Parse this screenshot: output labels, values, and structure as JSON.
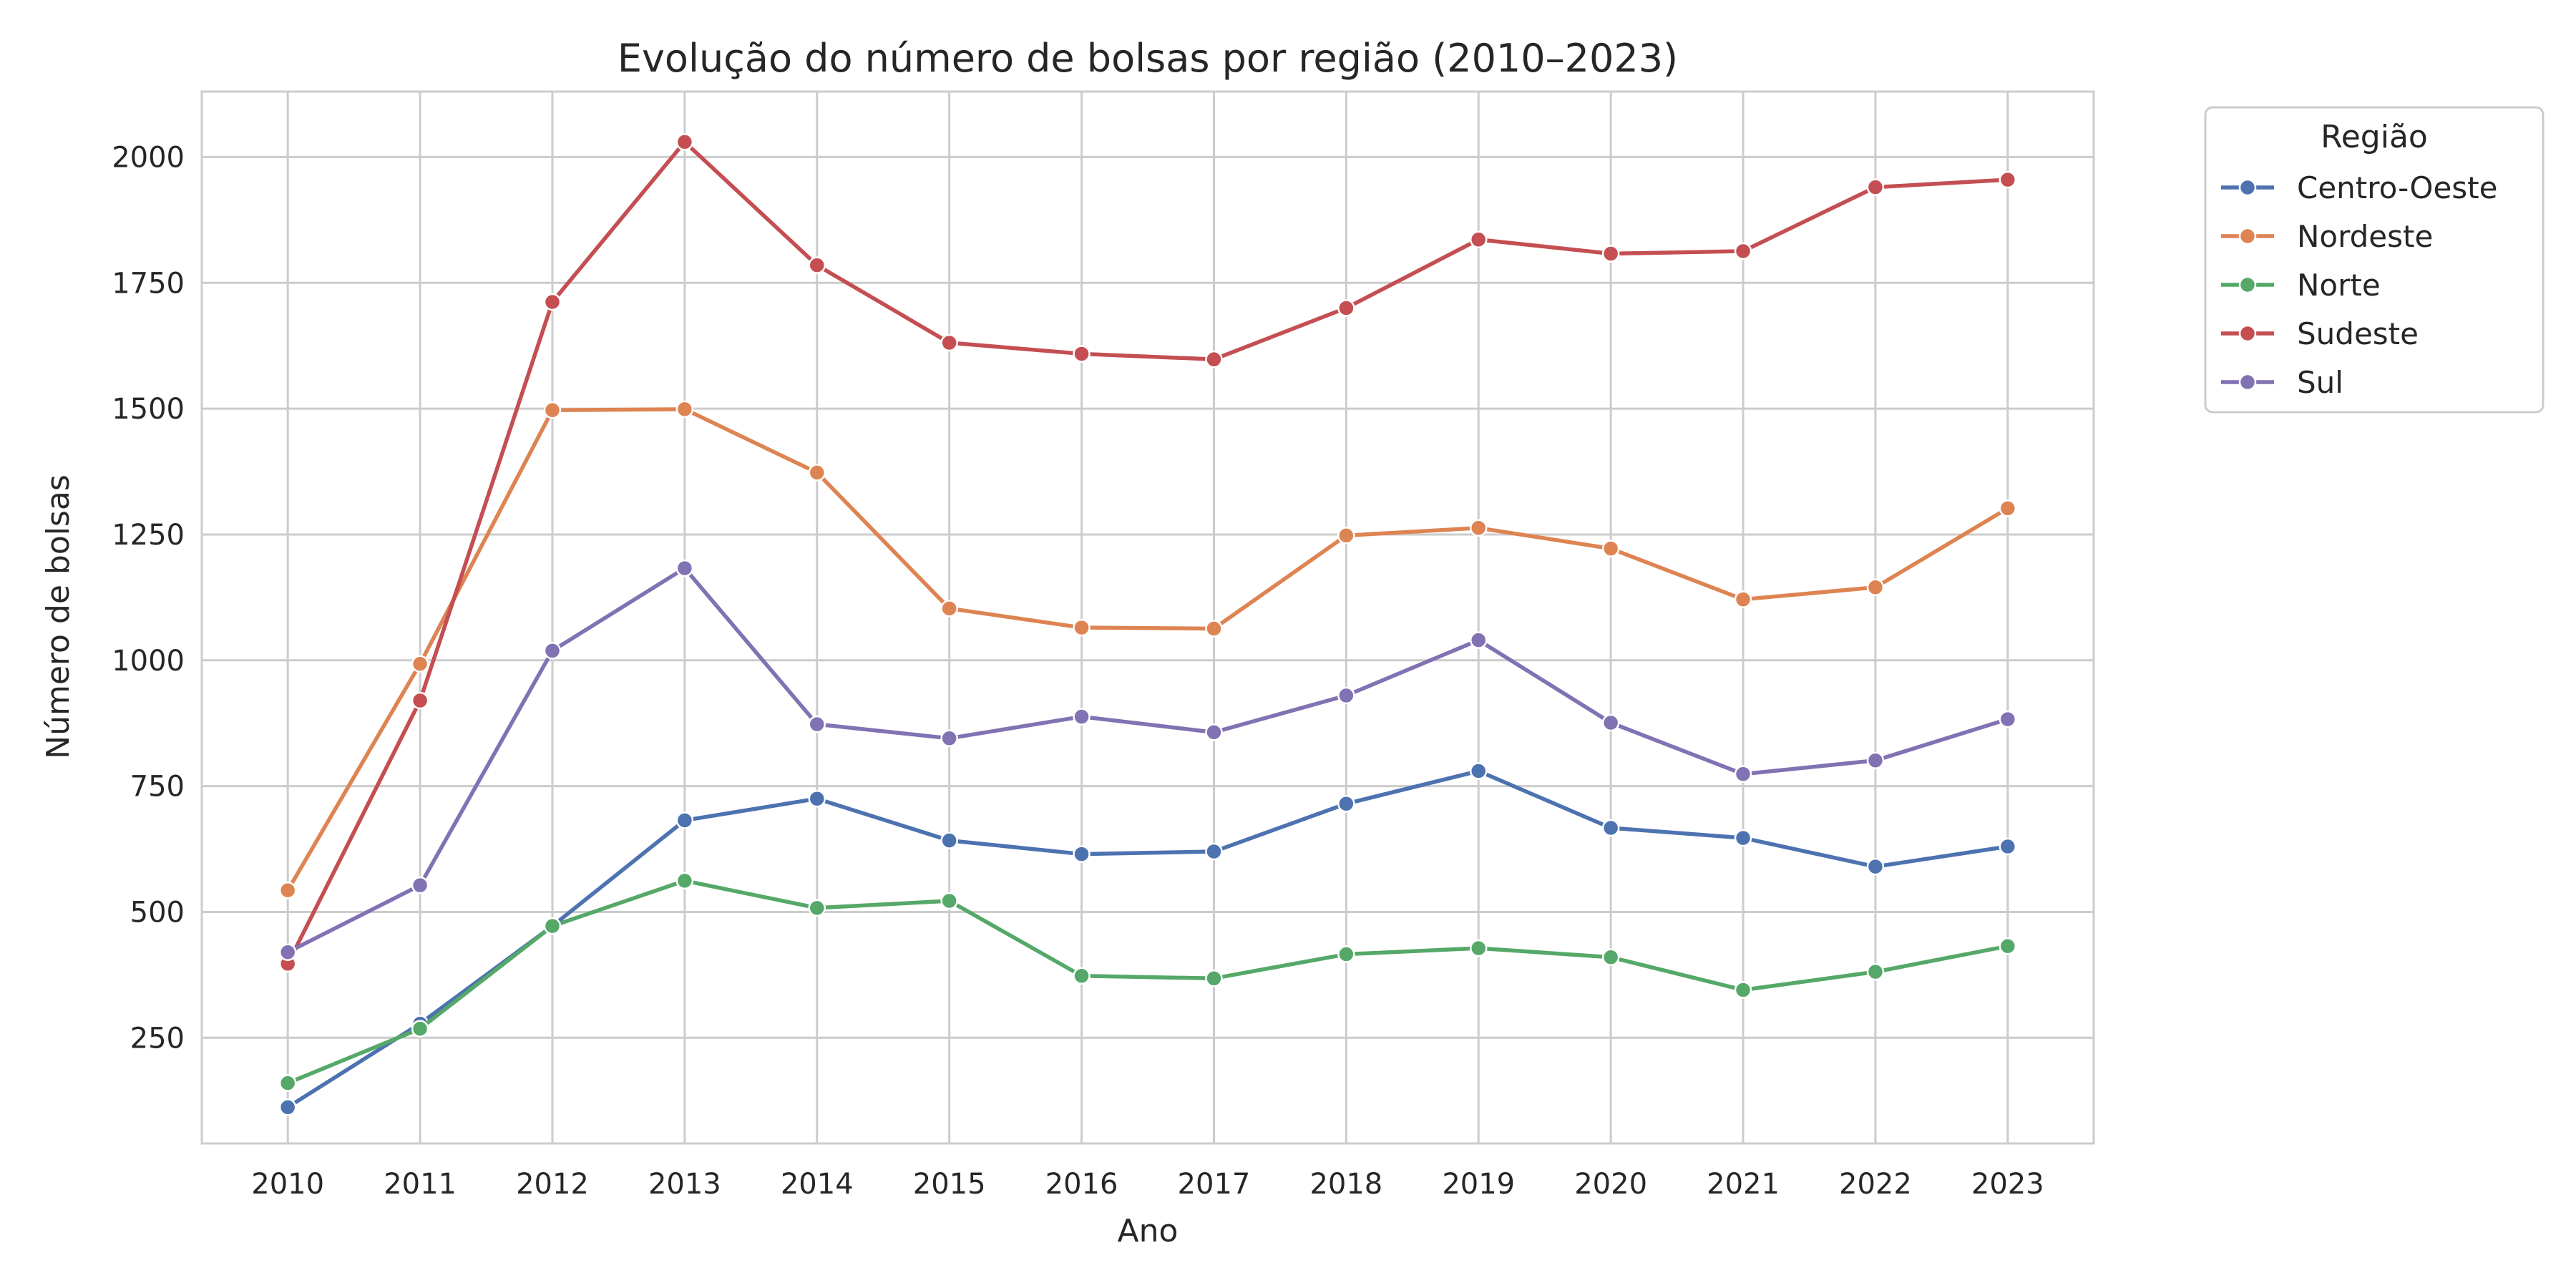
{
  "chart_data": {
    "type": "line",
    "title": "Evolução do número de bolsas por região (2010–2023)",
    "xlabel": "Ano",
    "ylabel": "Número de bolsas",
    "x": [
      2010,
      2011,
      2012,
      2013,
      2014,
      2015,
      2016,
      2017,
      2018,
      2019,
      2020,
      2021,
      2022,
      2023
    ],
    "yticks": [
      250,
      500,
      750,
      1000,
      1250,
      1500,
      1750,
      2000
    ],
    "ylim": [
      40,
      2130
    ],
    "grid": true,
    "legend": {
      "title": "Região",
      "placement": "outside-top-right"
    },
    "series": [
      {
        "name": "Centro-Oeste",
        "color": "#4c72b0",
        "values": [
          112,
          278,
          472,
          682,
          725,
          642,
          615,
          620,
          715,
          780,
          667,
          647,
          590,
          630
        ]
      },
      {
        "name": "Nordeste",
        "color": "#dd8452",
        "values": [
          543,
          993,
          1497,
          1499,
          1373,
          1103,
          1065,
          1063,
          1248,
          1263,
          1222,
          1121,
          1145,
          1302
        ]
      },
      {
        "name": "Norte",
        "color": "#55a868",
        "values": [
          160,
          268,
          472,
          562,
          508,
          522,
          373,
          368,
          416,
          428,
          410,
          345,
          381,
          432
        ]
      },
      {
        "name": "Sudeste",
        "color": "#c44e52",
        "values": [
          397,
          920,
          1712,
          2030,
          1785,
          1631,
          1609,
          1598,
          1700,
          1836,
          1808,
          1813,
          1940,
          1955
        ]
      },
      {
        "name": "Sul",
        "color": "#8172b3",
        "values": [
          420,
          553,
          1019,
          1183,
          873,
          845,
          888,
          857,
          930,
          1040,
          876,
          774,
          801,
          883
        ]
      }
    ]
  }
}
